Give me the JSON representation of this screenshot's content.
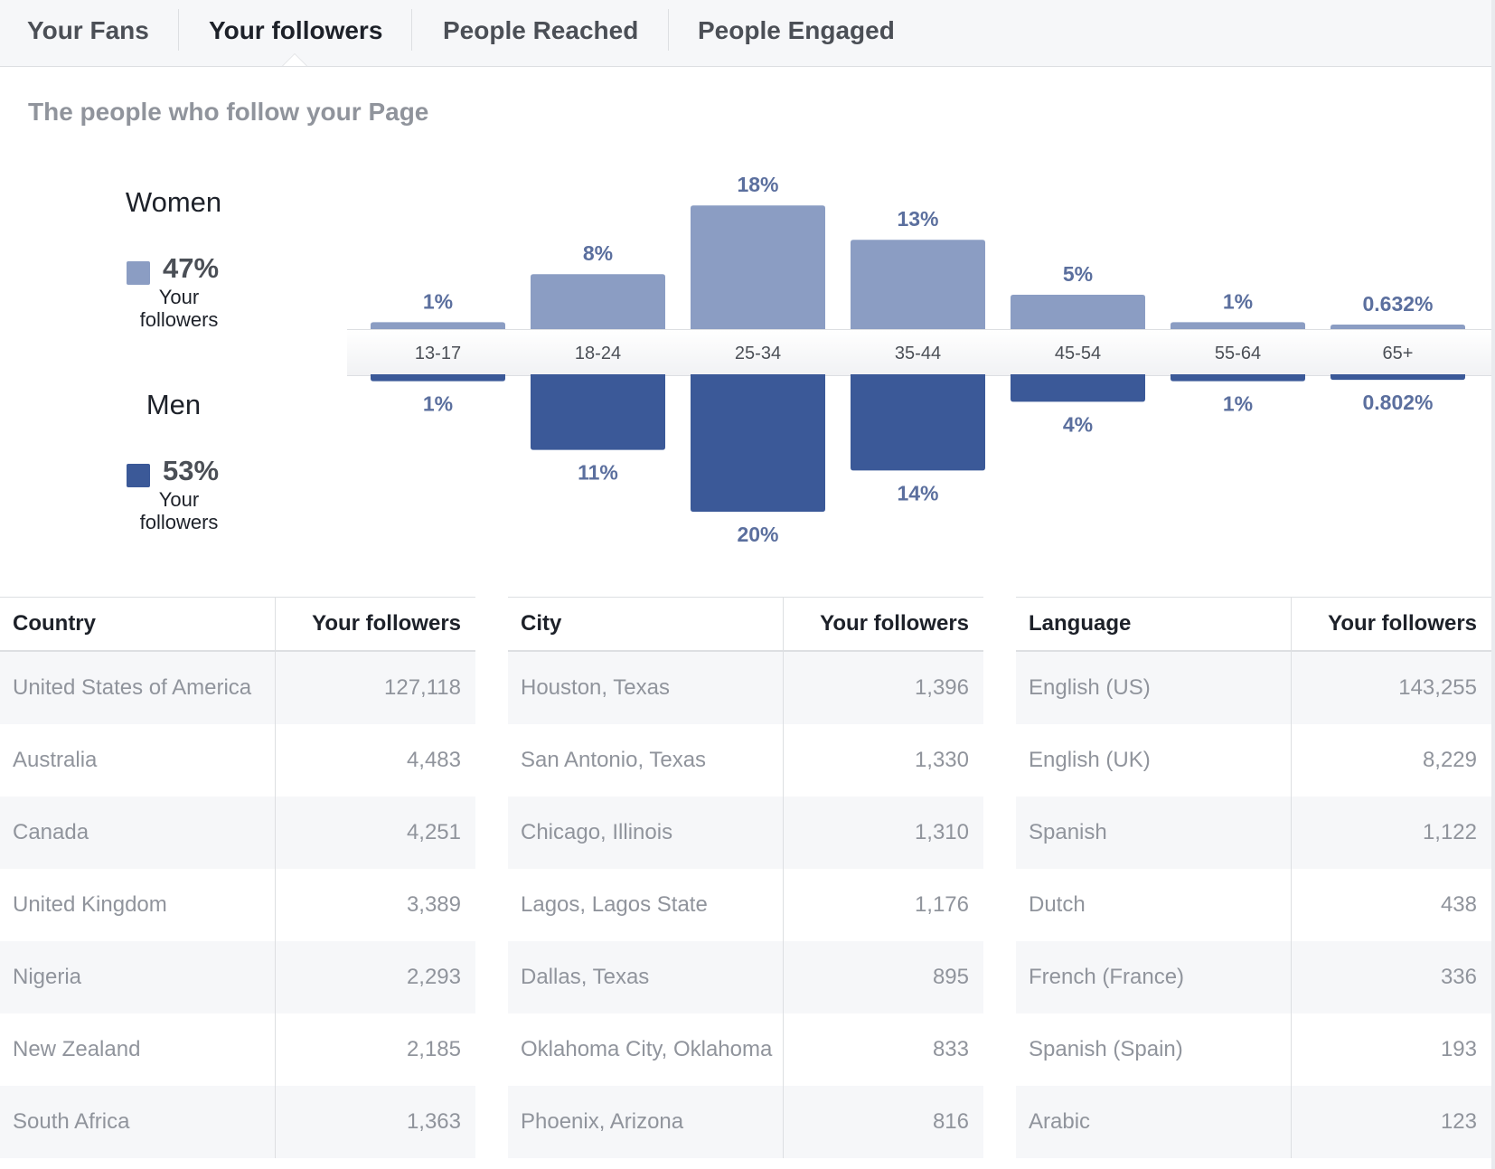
{
  "tabs": [
    {
      "label": "Your Fans",
      "active": false
    },
    {
      "label": "Your followers",
      "active": true
    },
    {
      "label": "People Reached",
      "active": false
    },
    {
      "label": "People Engaged",
      "active": false
    }
  ],
  "section_title": "The people who follow your Page",
  "legend": {
    "women": {
      "label": "Women",
      "percent": "47%",
      "sub1": "Your",
      "sub2": "followers",
      "color": "#8b9dc3"
    },
    "men": {
      "label": "Men",
      "percent": "53%",
      "sub1": "Your",
      "sub2": "followers",
      "color": "#3b5998"
    }
  },
  "chart_data": {
    "type": "bar",
    "categories": [
      "13-17",
      "18-24",
      "25-34",
      "35-44",
      "45-54",
      "55-64",
      "65+"
    ],
    "series": [
      {
        "name": "Women",
        "values": [
          1,
          8,
          18,
          13,
          5,
          1,
          0.632
        ],
        "labels": [
          "1%",
          "8%",
          "18%",
          "13%",
          "5%",
          "1%",
          "0.632%"
        ],
        "color": "#8b9dc3"
      },
      {
        "name": "Men",
        "values": [
          1,
          11,
          20,
          14,
          4,
          1,
          0.802
        ],
        "labels": [
          "1%",
          "11%",
          "20%",
          "14%",
          "4%",
          "1%",
          "0.802%"
        ],
        "color": "#3b5998"
      }
    ],
    "layout": "mirrored",
    "label_color": "#5b6f9e"
  },
  "tables": [
    {
      "header_name": "Country",
      "header_value": "Your followers",
      "rows": [
        {
          "name": "United States of America",
          "value": "127,118"
        },
        {
          "name": "Australia",
          "value": "4,483"
        },
        {
          "name": "Canada",
          "value": "4,251"
        },
        {
          "name": "United Kingdom",
          "value": "3,389"
        },
        {
          "name": "Nigeria",
          "value": "2,293"
        },
        {
          "name": "New Zealand",
          "value": "2,185"
        },
        {
          "name": "South Africa",
          "value": "1,363"
        }
      ]
    },
    {
      "header_name": "City",
      "header_value": "Your followers",
      "rows": [
        {
          "name": "Houston, Texas",
          "value": "1,396"
        },
        {
          "name": "San Antonio, Texas",
          "value": "1,330"
        },
        {
          "name": "Chicago, Illinois",
          "value": "1,310"
        },
        {
          "name": "Lagos, Lagos State",
          "value": "1,176"
        },
        {
          "name": "Dallas, Texas",
          "value": "895"
        },
        {
          "name": "Oklahoma City, Oklahoma",
          "value": "833"
        },
        {
          "name": "Phoenix, Arizona",
          "value": "816"
        }
      ]
    },
    {
      "header_name": "Language",
      "header_value": "Your followers",
      "rows": [
        {
          "name": "English (US)",
          "value": "143,255"
        },
        {
          "name": "English (UK)",
          "value": "8,229"
        },
        {
          "name": "Spanish",
          "value": "1,122"
        },
        {
          "name": "Dutch",
          "value": "438"
        },
        {
          "name": "French (France)",
          "value": "336"
        },
        {
          "name": "Spanish (Spain)",
          "value": "193"
        },
        {
          "name": "Arabic",
          "value": "123"
        }
      ]
    }
  ]
}
